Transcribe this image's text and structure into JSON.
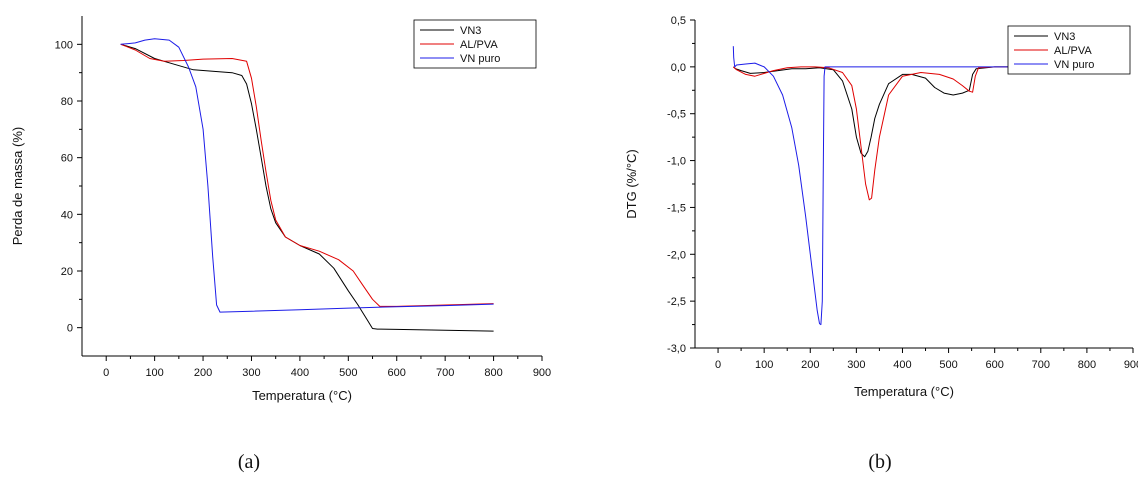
{
  "chart_data": [
    {
      "type": "line",
      "caption": "(a)",
      "xlabel": "Temperatura (°C)",
      "ylabel": "Perda de massa (%)",
      "xlim": [
        -50,
        900
      ],
      "ylim": [
        -10,
        110
      ],
      "xticks": [
        0,
        100,
        200,
        300,
        400,
        500,
        600,
        700,
        800,
        900
      ],
      "yticks": [
        0,
        20,
        40,
        60,
        80,
        100
      ],
      "legend_position": "top-right",
      "series": [
        {
          "name": "VN3",
          "color": "#000000",
          "x": [
            30,
            60,
            100,
            140,
            180,
            220,
            260,
            280,
            290,
            300,
            310,
            320,
            330,
            340,
            350,
            370,
            400,
            440,
            470,
            500,
            520,
            540,
            550,
            560,
            600,
            700,
            800
          ],
          "y": [
            100,
            98.5,
            95,
            93,
            91,
            90.5,
            90,
            89,
            86,
            79,
            70,
            60,
            50,
            42,
            37,
            32,
            29,
            26,
            21,
            13,
            8,
            2.5,
            -0.3,
            -0.5,
            -0.6,
            -0.9,
            -1.2
          ]
        },
        {
          "name": "AL/PVA",
          "color": "#e00000",
          "x": [
            30,
            60,
            90,
            120,
            160,
            200,
            260,
            290,
            300,
            310,
            320,
            330,
            340,
            350,
            370,
            400,
            440,
            480,
            510,
            530,
            550,
            565,
            600,
            700,
            800
          ],
          "y": [
            100,
            98,
            95,
            94,
            94.3,
            94.8,
            95,
            94,
            88,
            78,
            66,
            55,
            45,
            38,
            32,
            29,
            27,
            24,
            20,
            15,
            10,
            7.5,
            7.5,
            8,
            8.5
          ]
        },
        {
          "name": "VN puro",
          "color": "#1c1ce8",
          "x": [
            30,
            60,
            80,
            100,
            130,
            150,
            170,
            185,
            200,
            210,
            220,
            228,
            235,
            300,
            400,
            500,
            600,
            700,
            800
          ],
          "y": [
            100,
            100.5,
            101.5,
            102,
            101.5,
            99,
            92,
            85,
            70,
            50,
            25,
            8,
            5.5,
            5.8,
            6.3,
            6.9,
            7.4,
            7.8,
            8.3
          ]
        }
      ]
    },
    {
      "type": "line",
      "caption": "(b)",
      "xlabel": "Temperatura (°C)",
      "ylabel": "DTG (%/°C)",
      "xlim": [
        -50,
        900
      ],
      "ylim": [
        -3.0,
        0.5
      ],
      "xticks": [
        0,
        100,
        200,
        300,
        400,
        500,
        600,
        700,
        800,
        900
      ],
      "yticks": [
        -3.0,
        -2.5,
        -2.0,
        -1.5,
        -1.0,
        -0.5,
        0.0,
        0.5
      ],
      "ytick_labels": [
        "-3,0",
        "-2,5",
        "-2,0",
        "-1,5",
        "-1,0",
        "-0,5",
        "0,0",
        "0,5"
      ],
      "legend_position": "top-right",
      "series": [
        {
          "name": "VN3",
          "color": "#000000",
          "x": [
            33,
            38,
            50,
            70,
            100,
            130,
            160,
            190,
            220,
            250,
            270,
            290,
            300,
            310,
            318,
            325,
            332,
            340,
            350,
            370,
            400,
            420,
            450,
            470,
            490,
            510,
            530,
            545,
            552,
            560,
            600,
            700,
            800,
            880
          ],
          "y": [
            0.0,
            -0.02,
            -0.04,
            -0.07,
            -0.06,
            -0.04,
            -0.02,
            -0.02,
            -0.01,
            -0.03,
            -0.15,
            -0.45,
            -0.75,
            -0.92,
            -0.96,
            -0.9,
            -0.75,
            -0.55,
            -0.4,
            -0.18,
            -0.08,
            -0.08,
            -0.12,
            -0.22,
            -0.28,
            -0.3,
            -0.28,
            -0.25,
            -0.08,
            -0.02,
            0.0,
            0.0,
            0.0,
            0.0
          ]
        },
        {
          "name": "AL/PVA",
          "color": "#e00000",
          "x": [
            33,
            40,
            60,
            80,
            100,
            120,
            150,
            180,
            210,
            240,
            270,
            290,
            300,
            310,
            320,
            328,
            333,
            340,
            350,
            370,
            400,
            440,
            480,
            510,
            530,
            545,
            552,
            558,
            565,
            600,
            700,
            800,
            880
          ],
          "y": [
            0.0,
            -0.03,
            -0.08,
            -0.1,
            -0.07,
            -0.04,
            -0.01,
            0.0,
            0.0,
            -0.01,
            -0.06,
            -0.2,
            -0.45,
            -0.85,
            -1.25,
            -1.42,
            -1.4,
            -1.1,
            -0.75,
            -0.3,
            -0.1,
            -0.06,
            -0.08,
            -0.13,
            -0.2,
            -0.26,
            -0.27,
            -0.1,
            -0.01,
            0.0,
            0.0,
            0.0,
            0.0
          ]
        },
        {
          "name": "VN puro",
          "color": "#1c1ce8",
          "x": [
            33,
            34,
            36,
            40,
            60,
            80,
            100,
            120,
            140,
            160,
            175,
            190,
            200,
            210,
            215,
            220,
            223,
            226,
            228,
            230,
            232,
            240,
            260,
            300,
            400,
            500,
            600,
            700,
            800,
            880
          ],
          "y": [
            0.22,
            0.1,
            0.0,
            0.02,
            0.03,
            0.04,
            0.0,
            -0.1,
            -0.3,
            -0.65,
            -1.05,
            -1.6,
            -2.0,
            -2.4,
            -2.6,
            -2.74,
            -2.75,
            -2.5,
            -1.2,
            -0.1,
            0.0,
            0.0,
            0.0,
            0.0,
            0.0,
            0.0,
            0.0,
            0.0,
            0.0,
            0.0
          ]
        }
      ]
    }
  ]
}
